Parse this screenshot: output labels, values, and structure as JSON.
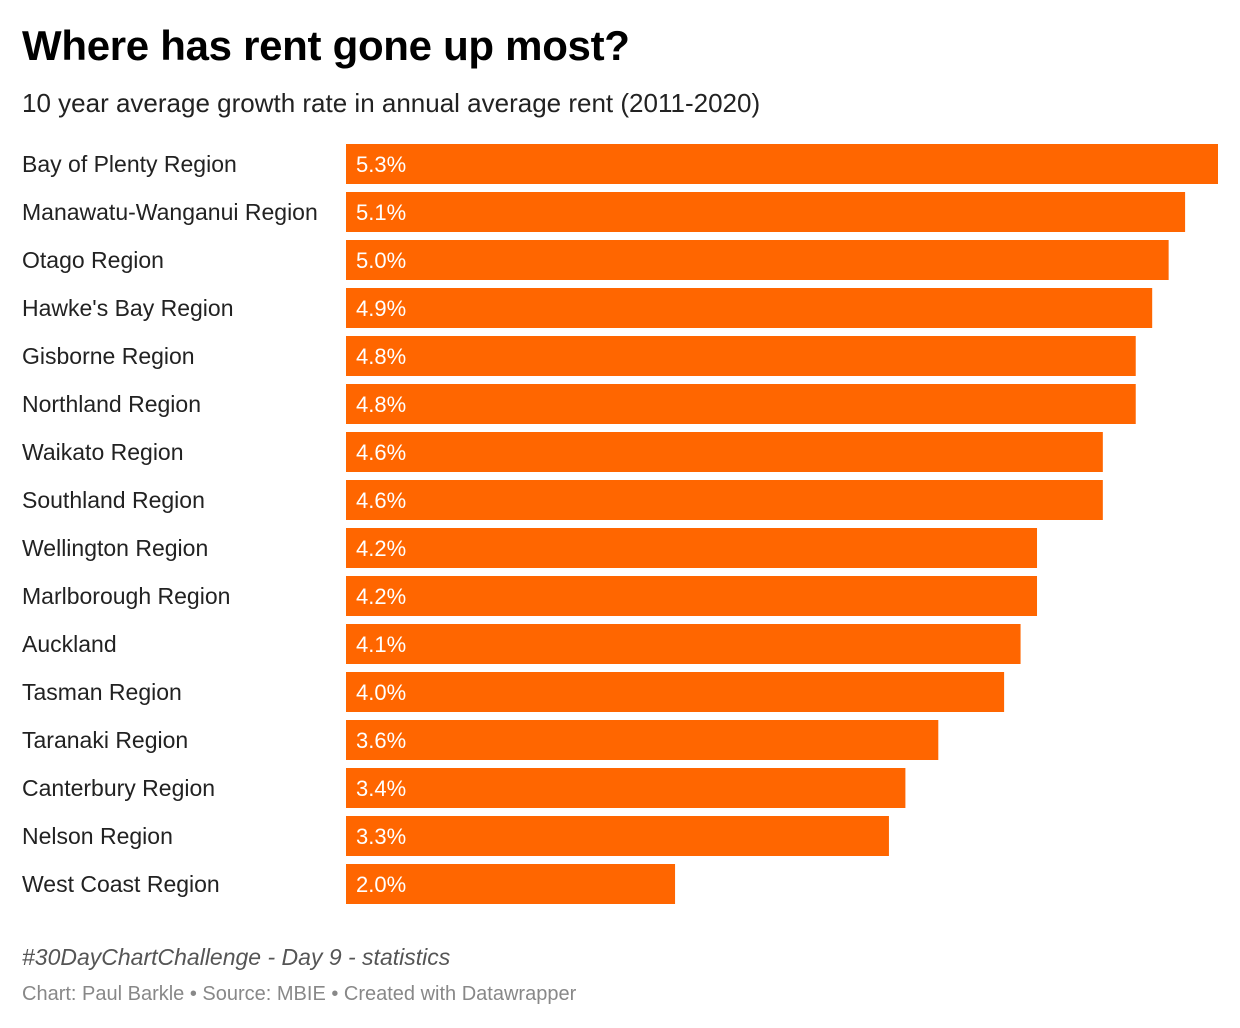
{
  "chart_data": {
    "type": "bar",
    "orientation": "horizontal",
    "title": "Where has rent gone up most?",
    "subtitle": "10 year average growth rate in annual average rent (2011-2020)",
    "categories": [
      "Bay of Plenty Region",
      "Manawatu-Wanganui Region",
      "Otago Region",
      "Hawke's Bay Region",
      "Gisborne Region",
      "Northland Region",
      "Waikato Region",
      "Southland Region",
      "Wellington Region",
      "Marlborough Region",
      "Auckland",
      "Tasman Region",
      "Taranaki Region",
      "Canterbury Region",
      "Nelson Region",
      "West Coast Region"
    ],
    "values": [
      5.3,
      5.1,
      5.0,
      4.9,
      4.8,
      4.8,
      4.6,
      4.6,
      4.2,
      4.2,
      4.1,
      4.0,
      3.6,
      3.4,
      3.3,
      2.0
    ],
    "value_labels": [
      "5.3%",
      "5.1%",
      "5.0%",
      "4.9%",
      "4.8%",
      "4.8%",
      "4.6%",
      "4.6%",
      "4.2%",
      "4.2%",
      "4.1%",
      "4.0%",
      "3.6%",
      "3.4%",
      "3.3%",
      "2.0%"
    ],
    "xlim": [
      0,
      5.3
    ],
    "bar_color": "#ff6600",
    "grid": false,
    "legend": "none"
  },
  "notes": "#30DayChartChallenge - Day 9 - statistics",
  "footer": "Chart: Paul Barkle • Source: MBIE • Created with Datawrapper"
}
